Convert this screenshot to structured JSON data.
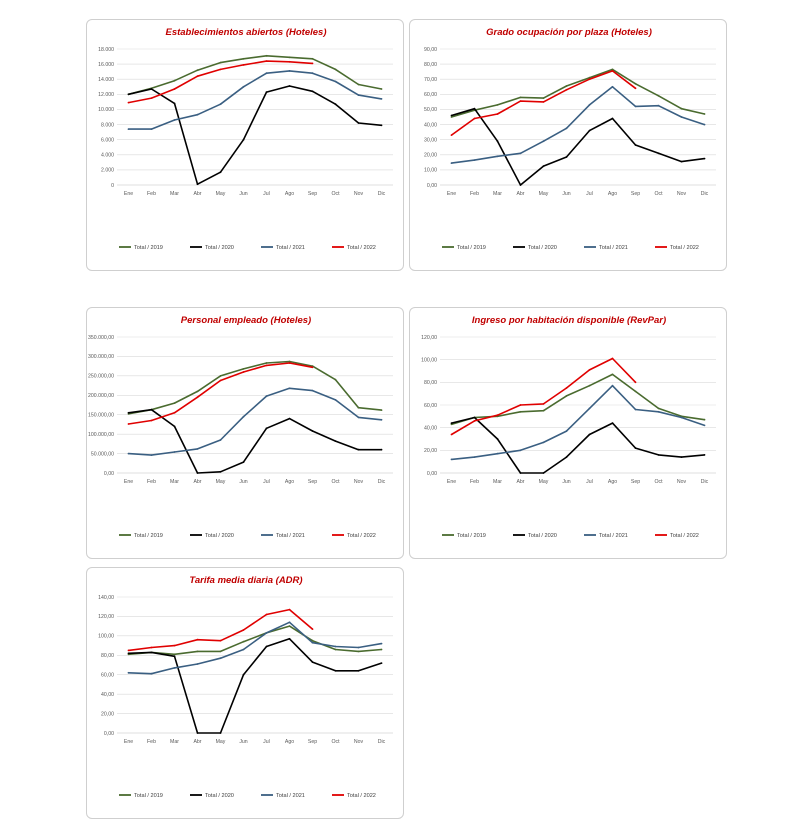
{
  "chart_data": [
    {
      "type": "line",
      "title": "Establecimientos  abiertos (Hoteles)",
      "xlabel": "",
      "ylabel": "",
      "categories": [
        "Ene",
        "Feb",
        "Mar",
        "Abr",
        "May",
        "Jun",
        "Jul",
        "Ago",
        "Sep",
        "Oct",
        "Nov",
        "Dic"
      ],
      "ylim": [
        0,
        18000
      ],
      "yticks": [
        0,
        2000,
        4000,
        6000,
        8000,
        10000,
        12000,
        14000,
        16000,
        18000
      ],
      "ytick_labels": [
        "0",
        "2.000",
        "4.000",
        "6.000",
        "8.000",
        "10.000",
        "12.000",
        "14.000",
        "16.000",
        "18.000"
      ],
      "grid": true,
      "legend": "bottom",
      "series": [
        {
          "name": "Total / 2019",
          "color": "#4a6b2f",
          "values": [
            12000,
            12800,
            13800,
            15200,
            16200,
            16700,
            17100,
            16900,
            16700,
            15300,
            13300,
            12700
          ]
        },
        {
          "name": "Total / 2020",
          "color": "#000000",
          "values": [
            12000,
            12700,
            10800,
            100,
            1700,
            6000,
            12300,
            13100,
            12400,
            10700,
            8200,
            7900
          ]
        },
        {
          "name": "Total / 2021",
          "color": "#3a5f82",
          "values": [
            7400,
            7400,
            8600,
            9300,
            10700,
            13000,
            14800,
            15100,
            14800,
            13700,
            11900,
            11400
          ]
        },
        {
          "name": "Total / 2022",
          "color": "#e00000",
          "values": [
            10900,
            11500,
            12700,
            14400,
            15300,
            15900,
            16400,
            16300,
            16100,
            null,
            null,
            null
          ]
        }
      ]
    },
    {
      "type": "line",
      "title": "Grado ocupación por plaza (Hoteles)",
      "xlabel": "",
      "ylabel": "",
      "categories": [
        "Ene",
        "Feb",
        "Mar",
        "Abr",
        "May",
        "Jun",
        "Jul",
        "Ago",
        "Sep",
        "Oct",
        "Nov",
        "Dic"
      ],
      "ylim": [
        0,
        90
      ],
      "yticks": [
        0,
        10,
        20,
        30,
        40,
        50,
        60,
        70,
        80,
        90
      ],
      "ytick_labels": [
        "0,00",
        "10,00",
        "20,00",
        "30,00",
        "40,00",
        "50,00",
        "60,00",
        "70,00",
        "80,00",
        "90,00"
      ],
      "grid": true,
      "legend": "bottom",
      "series": [
        {
          "name": "Total / 2019",
          "color": "#4a6b2f",
          "values": [
            45,
            49.5,
            53,
            58,
            57.5,
            65.5,
            71,
            76.5,
            67,
            59,
            50.5,
            47
          ]
        },
        {
          "name": "Total / 2020",
          "color": "#000000",
          "values": [
            46,
            50.5,
            29,
            0,
            12.5,
            18.5,
            36,
            44,
            26.5,
            21,
            15.5,
            17.5
          ]
        },
        {
          "name": "Total / 2021",
          "color": "#3a5f82",
          "values": [
            14.5,
            16.5,
            19,
            21,
            29,
            37.5,
            53,
            65,
            52,
            52.5,
            45,
            40
          ]
        },
        {
          "name": "Total / 2022",
          "color": "#e00000",
          "values": [
            33,
            44,
            47,
            55.5,
            55,
            63,
            70,
            75.5,
            64,
            null,
            null,
            null
          ]
        }
      ]
    },
    {
      "type": "line",
      "title": "Personal empleado (Hoteles)",
      "xlabel": "",
      "ylabel": "",
      "categories": [
        "Ene",
        "Feb",
        "Mar",
        "Abr",
        "May",
        "Jun",
        "Jul",
        "Ago",
        "Sep",
        "Oct",
        "Nov",
        "Dic"
      ],
      "ylim": [
        0,
        350000
      ],
      "yticks": [
        0,
        50000,
        100000,
        150000,
        200000,
        250000,
        300000,
        350000
      ],
      "ytick_labels": [
        "0,00",
        "50.000,00",
        "100.000,00",
        "150.000,00",
        "200.000,00",
        "250.000,00",
        "300.000,00",
        "350.000,00"
      ],
      "grid": true,
      "legend": "bottom",
      "series": [
        {
          "name": "Total / 2019",
          "color": "#4a6b2f",
          "values": [
            152000,
            163000,
            180000,
            210000,
            250000,
            268000,
            283000,
            287000,
            275000,
            240000,
            168000,
            162000
          ]
        },
        {
          "name": "Total / 2020",
          "color": "#000000",
          "values": [
            155000,
            163000,
            120000,
            0,
            3000,
            28000,
            115000,
            140000,
            108000,
            82000,
            60000,
            60000
          ]
        },
        {
          "name": "Total / 2021",
          "color": "#3a5f82",
          "values": [
            50000,
            46000,
            54000,
            62000,
            85000,
            145000,
            198000,
            218000,
            212000,
            188000,
            143000,
            137000
          ]
        },
        {
          "name": "Total / 2022",
          "color": "#e00000",
          "values": [
            126000,
            135000,
            155000,
            195000,
            238000,
            260000,
            277000,
            283000,
            272000,
            null,
            null,
            null
          ]
        }
      ]
    },
    {
      "type": "line",
      "title": "Ingreso por habitación disponible (RevPar)",
      "xlabel": "",
      "ylabel": "",
      "categories": [
        "Ene",
        "Feb",
        "Mar",
        "Abr",
        "May",
        "Jun",
        "Jul",
        "Ago",
        "Sep",
        "Oct",
        "Nov",
        "Dic"
      ],
      "ylim": [
        0,
        120
      ],
      "yticks": [
        0,
        20,
        40,
        60,
        80,
        100,
        120
      ],
      "ytick_labels": [
        "0,00",
        "20,00",
        "40,00",
        "60,00",
        "80,00",
        "100,00",
        "120,00"
      ],
      "grid": true,
      "legend": "bottom",
      "series": [
        {
          "name": "Total / 2019",
          "color": "#4a6b2f",
          "values": [
            43,
            49,
            50,
            54,
            55,
            68,
            77,
            87,
            72,
            57,
            50,
            47
          ]
        },
        {
          "name": "Total / 2020",
          "color": "#000000",
          "values": [
            44,
            49,
            30,
            0,
            0,
            14,
            34,
            44,
            22,
            16,
            14,
            16
          ]
        },
        {
          "name": "Total / 2021",
          "color": "#3a5f82",
          "values": [
            12,
            14,
            17,
            20,
            27,
            37,
            57,
            77,
            56,
            54,
            49,
            42
          ]
        },
        {
          "name": "Total / 2022",
          "color": "#e00000",
          "values": [
            34,
            46,
            51,
            60,
            61,
            75,
            91,
            101,
            80,
            null,
            null,
            null
          ]
        }
      ]
    },
    {
      "type": "line",
      "title": "Tarifa media diaria (ADR)",
      "xlabel": "",
      "ylabel": "",
      "categories": [
        "Ene",
        "Feb",
        "Mar",
        "Abr",
        "May",
        "Jun",
        "Jul",
        "Ago",
        "Sep",
        "Oct",
        "Nov",
        "Dic"
      ],
      "ylim": [
        0,
        140
      ],
      "yticks": [
        0,
        20,
        40,
        60,
        80,
        100,
        120,
        140
      ],
      "ytick_labels": [
        "0,00",
        "20,00",
        "40,00",
        "60,00",
        "80,00",
        "100,00",
        "120,00",
        "140,00"
      ],
      "grid": true,
      "legend": "bottom",
      "series": [
        {
          "name": "Total / 2019",
          "color": "#4a6b2f",
          "values": [
            81,
            83,
            81,
            84,
            84,
            94,
            103,
            110,
            95,
            86,
            84,
            86
          ]
        },
        {
          "name": "Total / 2020",
          "color": "#000000",
          "values": [
            82,
            83,
            79,
            0,
            0,
            60,
            89,
            97,
            73,
            64,
            64,
            72
          ]
        },
        {
          "name": "Total / 2021",
          "color": "#3a5f82",
          "values": [
            62,
            61,
            67,
            71,
            77,
            86,
            103,
            114,
            93,
            89,
            88,
            92
          ]
        },
        {
          "name": "Total / 2022",
          "color": "#e00000",
          "values": [
            85,
            88,
            90,
            96,
            95,
            106,
            122,
            127,
            107,
            null,
            null,
            null
          ]
        }
      ]
    }
  ]
}
